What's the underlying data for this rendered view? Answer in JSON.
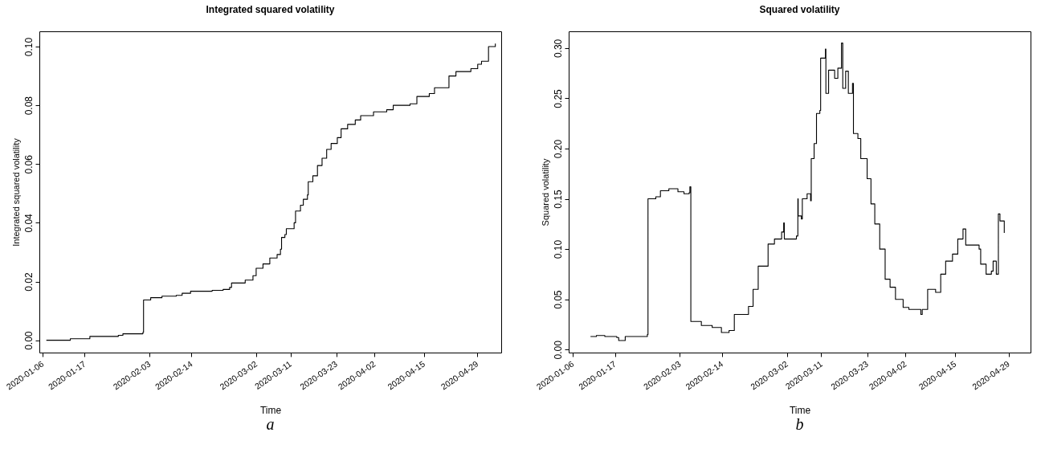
{
  "chart_data": [
    {
      "type": "step",
      "title": "Integrated squared volatility",
      "xlabel": "Time",
      "ylabel": "Integrated squared volatility",
      "annotations": [
        "a"
      ],
      "grid": false,
      "color": "#000000",
      "x": [
        "2020-01-06T23:00",
        "2020-01-13T06:00",
        "2020-01-18T09:00",
        "2020-01-25T20:00",
        "2020-01-27T01:00",
        "2020-02-01T07:00",
        "2020-02-01T11:00",
        "2020-02-03T08:00",
        "2020-02-06T07:00",
        "2020-02-10T01:00",
        "2020-02-11T14:00",
        "2020-02-13T19:00",
        "2020-02-19T11:00",
        "2020-02-22T08:00",
        "2020-02-24T01:00",
        "2020-02-24T13:00",
        "2020-02-28T03:00",
        "2020-03-01T04:00",
        "2020-03-02T00:00",
        "2020-03-03T19:00",
        "2020-03-05T14:00",
        "2020-03-07T12:00",
        "2020-03-08T09:00",
        "2020-03-08T16:00",
        "2020-03-09T13:00",
        "2020-03-09T22:00",
        "2020-03-11T23:00",
        "2020-03-12T08:00",
        "2020-03-13T15:00",
        "2020-03-14T09:00",
        "2020-03-15T11:00",
        "2020-03-15T16:00",
        "2020-03-16T21:00",
        "2020-03-18T02:00",
        "2020-03-19T07:00",
        "2020-03-20T12:00",
        "2020-03-21T16:00",
        "2020-03-23T07:00",
        "2020-03-24T07:00",
        "2020-03-26T00:00",
        "2020-03-28T00:00",
        "2020-03-29T10:00",
        "2020-04-01T19:00",
        "2020-04-05T06:00",
        "2020-04-06T23:00",
        "2020-04-11T09:00",
        "2020-04-13T04:00",
        "2020-04-16T10:00",
        "2020-04-17T19:00",
        "2020-04-21T14:00",
        "2020-04-23T10:00",
        "2020-04-27T08:00",
        "2020-04-29T03:00",
        "2020-04-30T03:00",
        "2020-05-01T19:00",
        "2020-05-01T23:00",
        "2020-05-03T18:00"
      ],
      "values": [
        0.0,
        0.0005,
        0.0013,
        0.0017,
        0.0022,
        0.0027,
        0.0137,
        0.0145,
        0.015,
        0.0153,
        0.016,
        0.0167,
        0.017,
        0.0173,
        0.018,
        0.0195,
        0.0205,
        0.022,
        0.0245,
        0.026,
        0.028,
        0.0292,
        0.031,
        0.035,
        0.036,
        0.038,
        0.04,
        0.044,
        0.046,
        0.048,
        0.0495,
        0.054,
        0.056,
        0.0595,
        0.062,
        0.065,
        0.067,
        0.069,
        0.072,
        0.0735,
        0.075,
        0.0765,
        0.0778,
        0.0785,
        0.08,
        0.0805,
        0.083,
        0.084,
        0.086,
        0.09,
        0.0915,
        0.0925,
        0.094,
        0.095,
        0.095,
        0.1,
        0.101
      ],
      "xlim": [
        "2020-01-05T03:00",
        "2020-05-05T07:00"
      ],
      "ylim": [
        -0.0042,
        0.1052
      ],
      "xticks": [
        "2020-01-06",
        "2020-01-17",
        "2020-02-03",
        "2020-02-14",
        "2020-03-02",
        "2020-03-11",
        "2020-03-23",
        "2020-04-02",
        "2020-04-15",
        "2020-04-29"
      ],
      "yticks": [
        {
          "value": 0,
          "label": "0.00"
        },
        {
          "value": 0.02,
          "label": "0.02"
        },
        {
          "value": 0.04,
          "label": "0.04"
        },
        {
          "value": 0.06,
          "label": "0.06"
        },
        {
          "value": 0.08,
          "label": "0.08"
        },
        {
          "value": 0.1,
          "label": "0.10"
        }
      ]
    },
    {
      "type": "step",
      "title": "Squared volatility",
      "xlabel": "Time",
      "ylabel": "Squared volatility",
      "annotations": [
        "b"
      ],
      "grid": false,
      "color": "#000000",
      "x": [
        "2020-01-10T15:00",
        "2020-01-12T04:00",
        "2020-01-14T09:00",
        "2020-01-17T12:00",
        "2020-01-18T00:00",
        "2020-01-19T17:00",
        "2020-01-25T12:00",
        "2020-01-25T16:00",
        "2020-01-27T17:00",
        "2020-01-28T22:00",
        "2020-01-31T03:00",
        "2020-02-02T12:00",
        "2020-02-04T02:00",
        "2020-02-05T10:00",
        "2020-02-05T15:00",
        "2020-02-05T21:00",
        "2020-02-07T02:00",
        "2020-02-08T15:00",
        "2020-02-11T11:00",
        "2020-02-13T19:00",
        "2020-02-13T21:00",
        "2020-02-15T21:00",
        "2020-02-17T06:00",
        "2020-02-20T23:00",
        "2020-02-22T04:00",
        "2020-02-23T12:00",
        "2020-02-26T02:00",
        "2020-02-27T18:00",
        "2020-02-29T15:00",
        "2020-03-01T04:00",
        "2020-03-01T08:00",
        "2020-03-03T15:00",
        "2020-03-04T12:00",
        "2020-03-04T21:00",
        "2020-03-04T23:00",
        "2020-03-05T19:00",
        "2020-03-06T01:00",
        "2020-03-07T07:00",
        "2020-03-08T05:00",
        "2020-03-08T09:00",
        "2020-03-09T03:00",
        "2020-03-09T18:00",
        "2020-03-10T15:00",
        "2020-03-10T20:00",
        "2020-03-12T02:00",
        "2020-03-12T05:00",
        "2020-03-12T22:00",
        "2020-03-14T12:00",
        "2020-03-15T08:00",
        "2020-03-16T07:00",
        "2020-03-16T15:00",
        "2020-03-17T09:00",
        "2020-03-18T02:00",
        "2020-03-19T04:00",
        "2020-03-19T10:00",
        "2020-03-20T14:00",
        "2020-03-21T08:00",
        "2020-03-23T00:00",
        "2020-03-24T00:00",
        "2020-03-25T00:00",
        "2020-03-26T07:00",
        "2020-03-27T17:00",
        "2020-03-29T00:00",
        "2020-03-30T10:00",
        "2020-04-01T10:00",
        "2020-04-02T22:00",
        "2020-04-06T01:00",
        "2020-04-06T10:00",
        "2020-04-07T17:00",
        "2020-04-07T20:00",
        "2020-04-09T13:00",
        "2020-04-09T22:00",
        "2020-04-11T06:00",
        "2020-04-12T13:00",
        "2020-04-14T08:00",
        "2020-04-15T17:00",
        "2020-04-17T02:00",
        "2020-04-17T19:00",
        "2020-04-19T05:00",
        "2020-04-21T07:00",
        "2020-04-21T17:00",
        "2020-04-23T03:00",
        "2020-04-24T12:00",
        "2020-04-24T23:00",
        "2020-04-25T19:00",
        "2020-04-26T08:00",
        "2020-04-26T18:00",
        "2020-04-27T18:00",
        "2020-04-27T21:00"
      ],
      "values": [
        0.013,
        0.014,
        0.013,
        0.012,
        0.009,
        0.013,
        0.015,
        0.15,
        0.152,
        0.158,
        0.16,
        0.157,
        0.155,
        0.156,
        0.162,
        0.028,
        0.028,
        0.024,
        0.022,
        0.022,
        0.017,
        0.019,
        0.035,
        0.043,
        0.06,
        0.083,
        0.105,
        0.11,
        0.117,
        0.126,
        0.11,
        0.11,
        0.113,
        0.15,
        0.133,
        0.13,
        0.15,
        0.155,
        0.148,
        0.19,
        0.205,
        0.235,
        0.238,
        0.29,
        0.299,
        0.255,
        0.278,
        0.27,
        0.28,
        0.305,
        0.26,
        0.277,
        0.255,
        0.265,
        0.215,
        0.21,
        0.19,
        0.17,
        0.145,
        0.125,
        0.1,
        0.07,
        0.062,
        0.05,
        0.042,
        0.04,
        0.035,
        0.04,
        0.04,
        0.06,
        0.06,
        0.057,
        0.075,
        0.088,
        0.095,
        0.11,
        0.12,
        0.104,
        0.104,
        0.1,
        0.085,
        0.075,
        0.078,
        0.088,
        0.075,
        0.135,
        0.128,
        0.128,
        0.116
      ],
      "xlim": [
        "2020-01-04T22:00",
        "2020-05-04T18:00"
      ],
      "ylim": [
        -0.003,
        0.3167
      ],
      "xticks": [
        "2020-01-06",
        "2020-01-17",
        "2020-02-03",
        "2020-02-14",
        "2020-03-02",
        "2020-03-11",
        "2020-03-23",
        "2020-04-02",
        "2020-04-15",
        "2020-04-29"
      ],
      "yticks": [
        {
          "value": 0,
          "label": "0.00"
        },
        {
          "value": 0.05,
          "label": "0.05"
        },
        {
          "value": 0.1,
          "label": "0.10"
        },
        {
          "value": 0.15,
          "label": "0.15"
        },
        {
          "value": 0.2,
          "label": "0.20"
        },
        {
          "value": 0.25,
          "label": "0.25"
        },
        {
          "value": 0.3,
          "label": "0.30"
        }
      ]
    }
  ]
}
